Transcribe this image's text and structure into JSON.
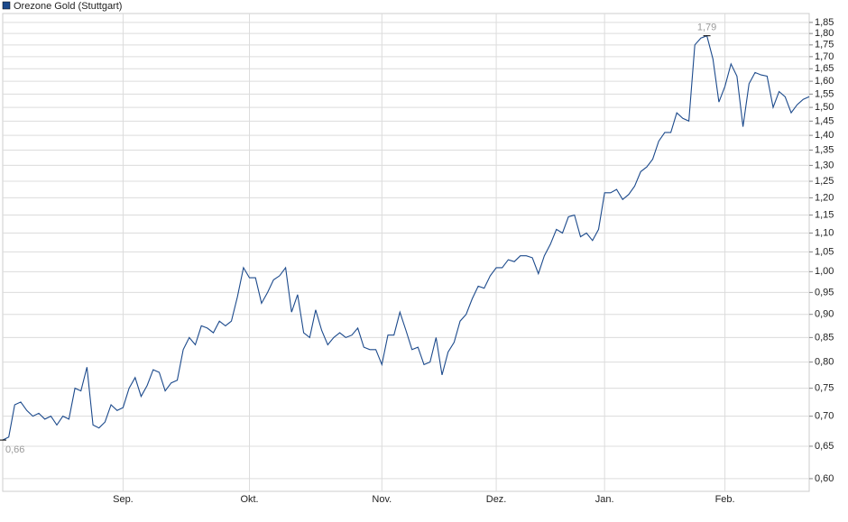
{
  "chart_data": {
    "type": "line",
    "categories": [
      null,
      null,
      null,
      null,
      null,
      null,
      null,
      null,
      null,
      null,
      null,
      null,
      null,
      null,
      null,
      null,
      null,
      null,
      null,
      null,
      "Sep.",
      null,
      null,
      null,
      null,
      null,
      null,
      null,
      null,
      null,
      null,
      null,
      null,
      null,
      null,
      null,
      null,
      null,
      null,
      null,
      null,
      "Okt.",
      null,
      null,
      null,
      null,
      null,
      null,
      null,
      null,
      null,
      null,
      null,
      null,
      null,
      null,
      null,
      null,
      null,
      null,
      null,
      null,
      null,
      "Nov.",
      null,
      null,
      null,
      null,
      null,
      null,
      null,
      null,
      null,
      null,
      null,
      null,
      null,
      null,
      null,
      null,
      null,
      null,
      "Dez.",
      null,
      null,
      null,
      null,
      null,
      null,
      null,
      null,
      null,
      null,
      null,
      null,
      null,
      null,
      null,
      null,
      null,
      "Jan.",
      null,
      null,
      null,
      null,
      null,
      null,
      null,
      null,
      null,
      null,
      null,
      null,
      null,
      null,
      null,
      null,
      null,
      null,
      null,
      "Feb.",
      null,
      null,
      null,
      null,
      null,
      null,
      null,
      null,
      null,
      null,
      null,
      null,
      null,
      null
    ],
    "series": [
      {
        "name": "Orezone Gold (Stuttgart)",
        "color": "#1c4a8c",
        "values": [
          0.66,
          0.665,
          0.72,
          0.725,
          0.71,
          0.7,
          0.705,
          0.695,
          0.7,
          0.685,
          0.7,
          0.695,
          0.75,
          0.745,
          0.79,
          0.685,
          0.68,
          0.69,
          0.72,
          0.71,
          0.715,
          0.75,
          0.77,
          0.735,
          0.755,
          0.785,
          0.78,
          0.745,
          0.76,
          0.765,
          0.825,
          0.85,
          0.835,
          0.875,
          0.87,
          0.86,
          0.885,
          0.875,
          0.885,
          0.94,
          1.01,
          0.985,
          0.985,
          0.925,
          0.95,
          0.98,
          0.99,
          1.01,
          0.905,
          0.945,
          0.86,
          0.85,
          0.91,
          0.865,
          0.835,
          0.85,
          0.86,
          0.85,
          0.855,
          0.87,
          0.83,
          0.825,
          0.825,
          0.795,
          0.855,
          0.855,
          0.905,
          0.865,
          0.825,
          0.83,
          0.795,
          0.8,
          0.85,
          0.775,
          0.82,
          0.84,
          0.885,
          0.9,
          0.935,
          0.965,
          0.96,
          0.99,
          1.01,
          1.01,
          1.03,
          1.025,
          1.04,
          1.04,
          1.035,
          0.995,
          1.04,
          1.07,
          1.11,
          1.1,
          1.145,
          1.15,
          1.09,
          1.1,
          1.08,
          1.11,
          1.215,
          1.215,
          1.225,
          1.195,
          1.21,
          1.235,
          1.28,
          1.295,
          1.32,
          1.38,
          1.41,
          1.41,
          1.48,
          1.46,
          1.45,
          1.75,
          1.78,
          1.79,
          1.69,
          1.52,
          1.58,
          1.67,
          1.62,
          1.43,
          1.59,
          1.635,
          1.625,
          1.62,
          1.5,
          1.56,
          1.54,
          1.48,
          1.51,
          1.53,
          1.54
        ],
        "value_labels": [
          "0,66",
          null,
          null,
          null,
          null,
          null,
          null,
          null,
          null,
          null,
          null,
          null,
          null,
          null,
          null,
          null,
          null,
          null,
          null,
          null,
          null,
          null,
          null,
          null,
          null,
          null,
          null,
          null,
          null,
          null,
          null,
          null,
          null,
          null,
          null,
          null,
          null,
          null,
          null,
          null,
          null,
          null,
          null,
          null,
          null,
          null,
          null,
          null,
          null,
          null,
          null,
          null,
          null,
          null,
          null,
          null,
          null,
          null,
          null,
          null,
          null,
          null,
          null,
          null,
          null,
          null,
          null,
          null,
          null,
          null,
          null,
          null,
          null,
          null,
          null,
          null,
          null,
          null,
          null,
          null,
          null,
          null,
          null,
          null,
          null,
          null,
          null,
          null,
          null,
          null,
          null,
          null,
          null,
          null,
          null,
          null,
          null,
          null,
          null,
          null,
          null,
          null,
          null,
          null,
          null,
          null,
          null,
          null,
          null,
          null,
          null,
          null,
          null,
          null,
          null,
          null,
          null,
          "1,79",
          null,
          null,
          null,
          null,
          null,
          null,
          null,
          null,
          null,
          null,
          null,
          null,
          null,
          null,
          null,
          null,
          null
        ]
      }
    ],
    "ylim": [
      0.5815,
      1.891
    ],
    "log_scale": true,
    "grid": true,
    "legend": "top-left",
    "yticks": [
      {
        "value": 0.6,
        "label": "0,60"
      },
      {
        "value": 0.65,
        "label": "0,65"
      },
      {
        "value": 0.7,
        "label": "0,70"
      },
      {
        "value": 0.75,
        "label": "0,75"
      },
      {
        "value": 0.8,
        "label": "0,80"
      },
      {
        "value": 0.85,
        "label": "0,85"
      },
      {
        "value": 0.9,
        "label": "0,90"
      },
      {
        "value": 0.95,
        "label": "0,95"
      },
      {
        "value": 1.0,
        "label": "1,00"
      },
      {
        "value": 1.05,
        "label": "1,05"
      },
      {
        "value": 1.1,
        "label": "1,10"
      },
      {
        "value": 1.15,
        "label": "1,15"
      },
      {
        "value": 1.2,
        "label": "1,20"
      },
      {
        "value": 1.25,
        "label": "1,25"
      },
      {
        "value": 1.3,
        "label": "1,30"
      },
      {
        "value": 1.35,
        "label": "1,35"
      },
      {
        "value": 1.4,
        "label": "1,40"
      },
      {
        "value": 1.45,
        "label": "1,45"
      },
      {
        "value": 1.5,
        "label": "1,50"
      },
      {
        "value": 1.55,
        "label": "1,55"
      },
      {
        "value": 1.6,
        "label": "1,60"
      },
      {
        "value": 1.65,
        "label": "1,65"
      },
      {
        "value": 1.7,
        "label": "1,70"
      },
      {
        "value": 1.75,
        "label": "1,75"
      },
      {
        "value": 1.8,
        "label": "1,80"
      },
      {
        "value": 1.85,
        "label": "1,85"
      }
    ]
  }
}
